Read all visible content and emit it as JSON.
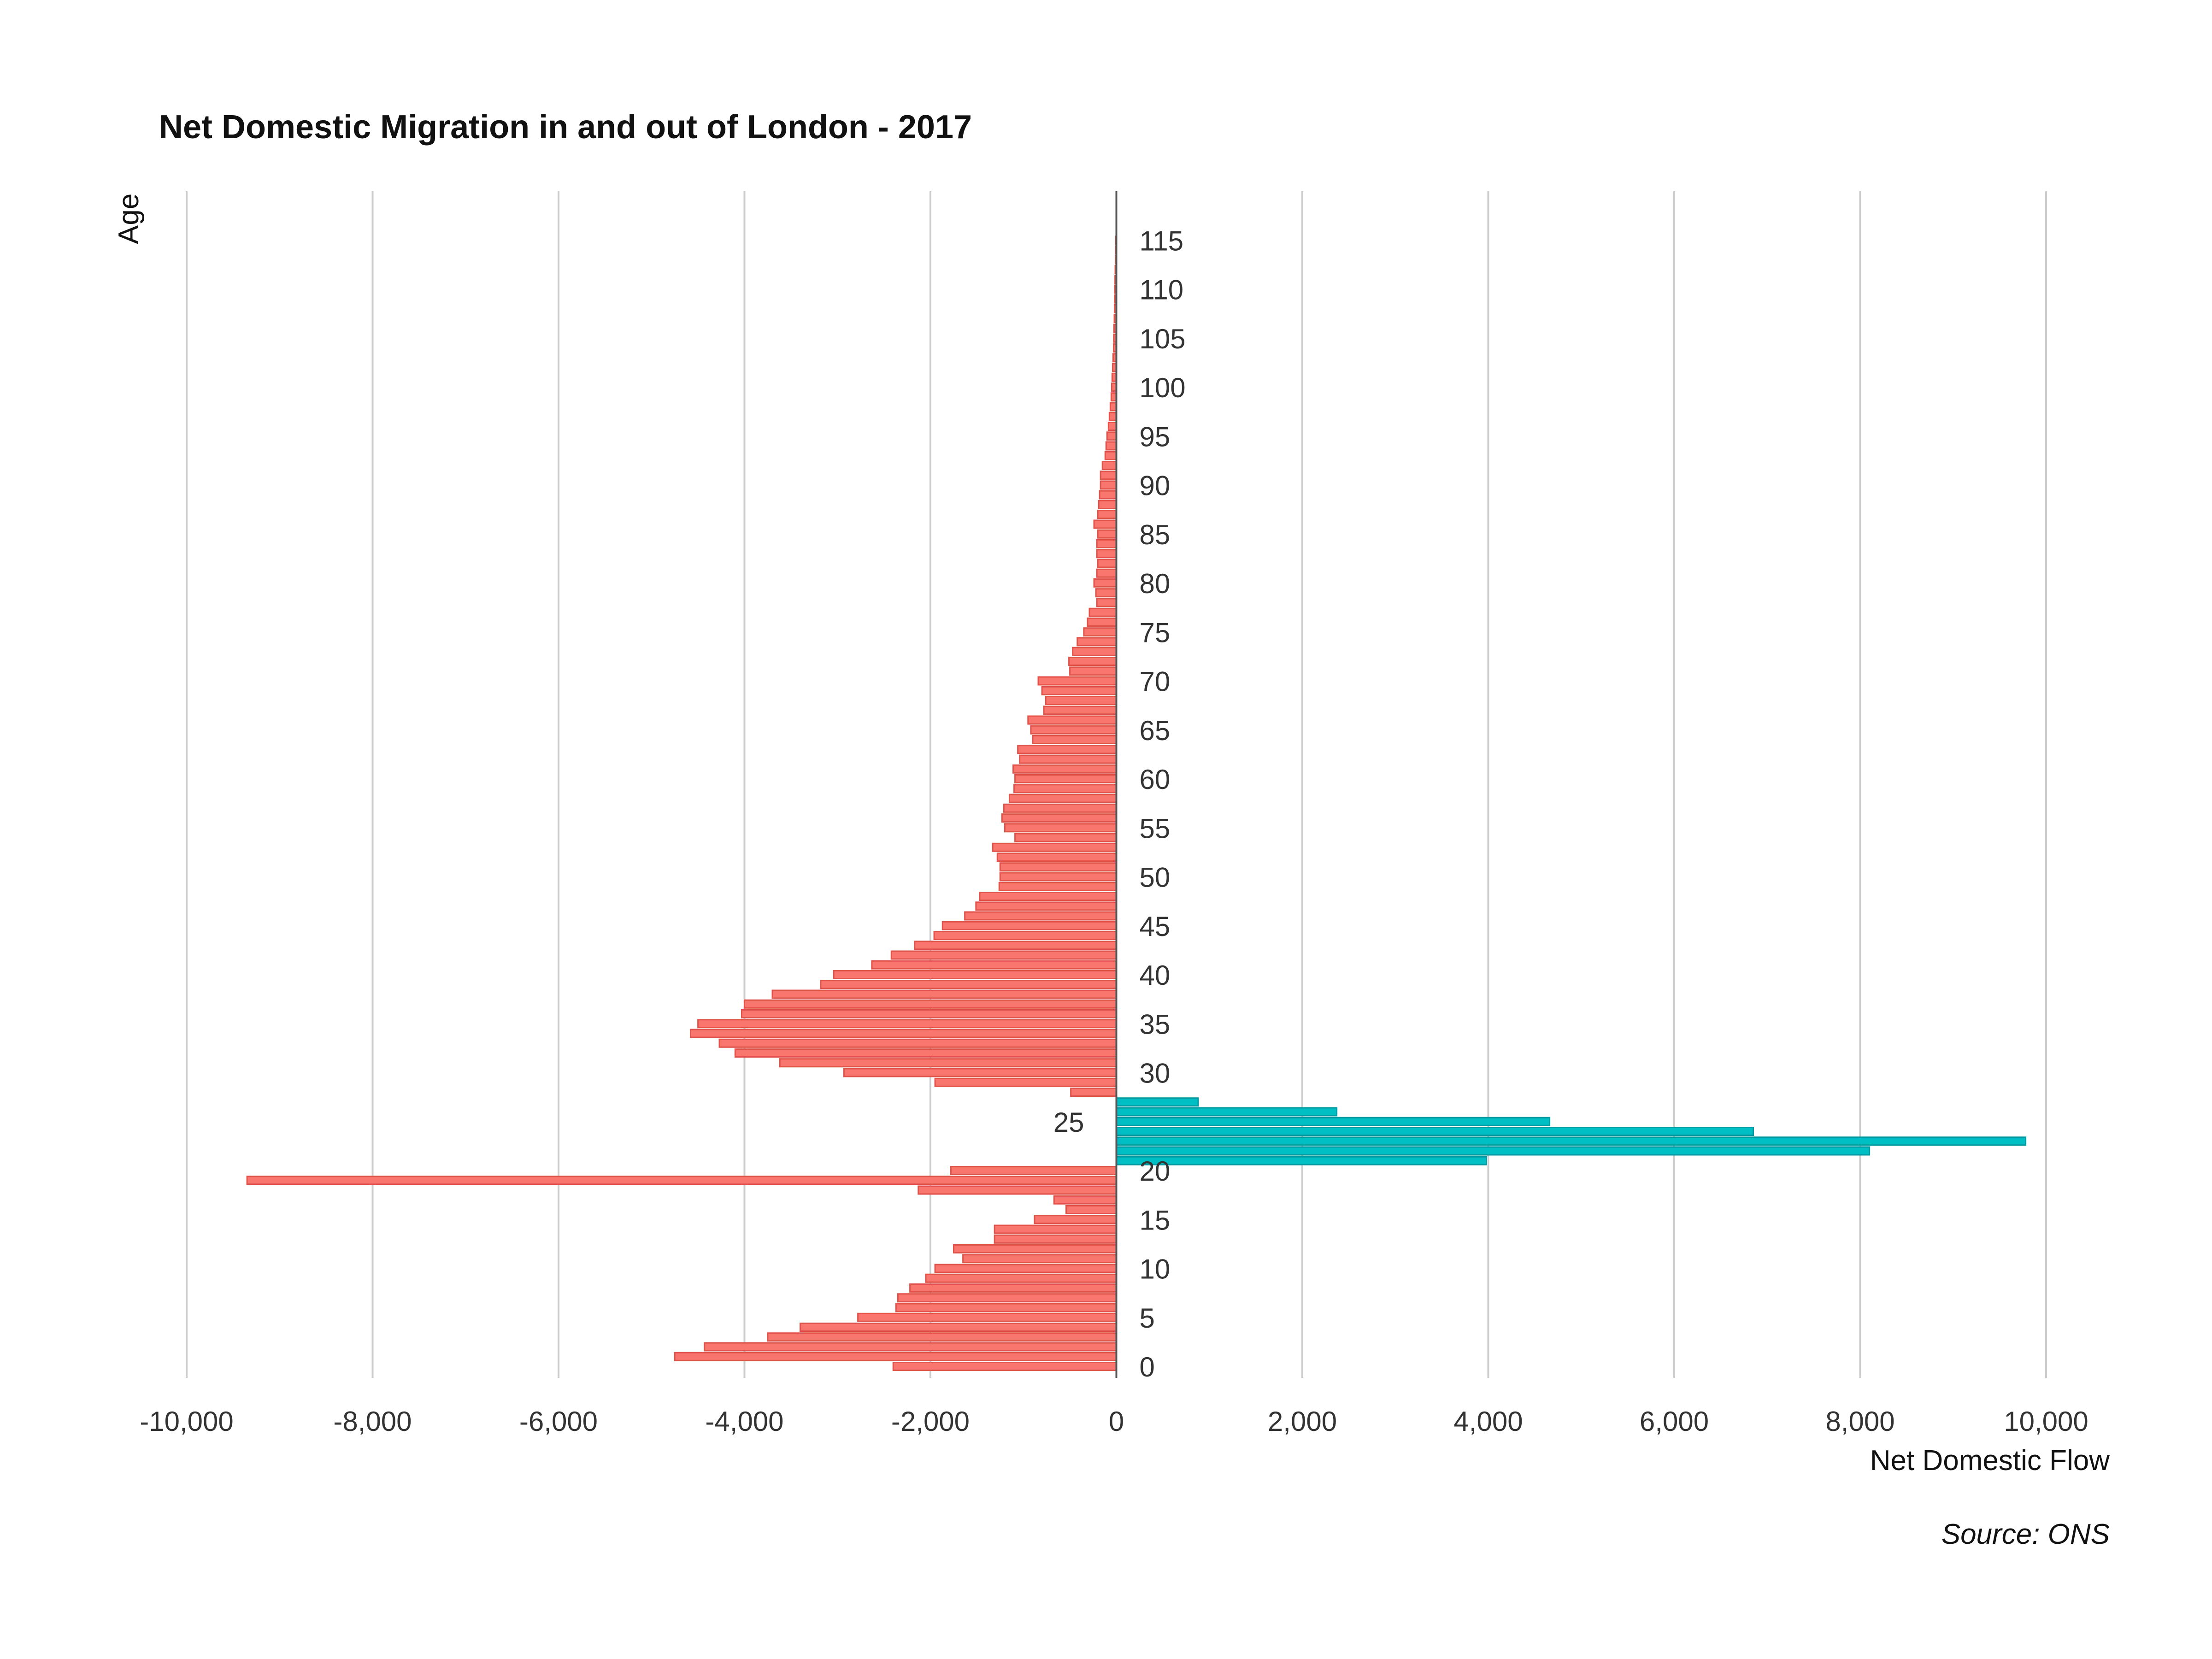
{
  "chart_data": {
    "type": "bar",
    "orientation": "horizontal",
    "title": "Net Domestic Migration in and out of London - 2017",
    "xlabel": "Net Domestic Flow",
    "ylabel": "Age",
    "source": "Source: ONS",
    "xlim": [
      -10000,
      10000
    ],
    "xticks": [
      "-10,000",
      "-8,000",
      "-6,000",
      "-4,000",
      "-2,000",
      "0",
      "2,000",
      "4,000",
      "6,000",
      "8,000",
      "10,000"
    ],
    "xtick_values": [
      -10000,
      -8000,
      -6000,
      -4000,
      -2000,
      0,
      2000,
      4000,
      6000,
      8000,
      10000
    ],
    "yticks": [
      "0",
      "5",
      "10",
      "15",
      "20",
      "25",
      "30",
      "35",
      "40",
      "45",
      "50",
      "55",
      "60",
      "65",
      "70",
      "75",
      "80",
      "85",
      "90",
      "95",
      "100",
      "105",
      "110",
      "115"
    ],
    "ytick_values": [
      0,
      5,
      10,
      15,
      20,
      25,
      30,
      35,
      40,
      45,
      50,
      55,
      60,
      65,
      70,
      75,
      80,
      85,
      90,
      95,
      100,
      105,
      110,
      115
    ],
    "grid": "vertical",
    "colors": {
      "negative": "#F8766D",
      "negative_edge": "#E0534A",
      "positive": "#00BFC4",
      "positive_edge": "#009AA0",
      "grid": "#CCCCCC",
      "axis": "#555555"
    },
    "ages": [
      0,
      1,
      2,
      3,
      4,
      5,
      6,
      7,
      8,
      9,
      10,
      11,
      12,
      13,
      14,
      15,
      16,
      17,
      18,
      19,
      20,
      21,
      22,
      23,
      24,
      25,
      26,
      27,
      28,
      29,
      30,
      31,
      32,
      33,
      34,
      35,
      36,
      37,
      38,
      39,
      40,
      41,
      42,
      43,
      44,
      45,
      46,
      47,
      48,
      49,
      50,
      51,
      52,
      53,
      54,
      55,
      56,
      57,
      58,
      59,
      60,
      61,
      62,
      63,
      64,
      65,
      66,
      67,
      68,
      69,
      70,
      71,
      72,
      73,
      74,
      75,
      76,
      77,
      78,
      79,
      80,
      81,
      82,
      83,
      84,
      85,
      86,
      87,
      88,
      89,
      90,
      91,
      92,
      93,
      94,
      95,
      96,
      97,
      98,
      99,
      100,
      101,
      102,
      103,
      104,
      105,
      106,
      107,
      108,
      109,
      110,
      111,
      112,
      113,
      114,
      115
    ],
    "values": [
      -2400,
      -4750,
      -4430,
      -3750,
      -3400,
      -2780,
      -2370,
      -2350,
      -2220,
      -2050,
      -1950,
      -1650,
      -1750,
      -1310,
      -1310,
      -880,
      -540,
      -670,
      -2130,
      -9350,
      -1780,
      3980,
      8100,
      9780,
      6850,
      4660,
      2370,
      880,
      -490,
      -1950,
      -2930,
      -3620,
      -4100,
      -4270,
      -4580,
      -4500,
      -4030,
      -4000,
      -3700,
      -3180,
      -3040,
      -2630,
      -2420,
      -2170,
      -1960,
      -1870,
      -1630,
      -1510,
      -1470,
      -1260,
      -1250,
      -1250,
      -1280,
      -1330,
      -1090,
      -1200,
      -1230,
      -1210,
      -1150,
      -1100,
      -1090,
      -1110,
      -1040,
      -1060,
      -900,
      -920,
      -950,
      -780,
      -760,
      -800,
      -840,
      -500,
      -510,
      -470,
      -420,
      -350,
      -310,
      -290,
      -210,
      -220,
      -240,
      -210,
      -200,
      -210,
      -210,
      -200,
      -240,
      -200,
      -190,
      -180,
      -170,
      -170,
      -150,
      -120,
      -110,
      -100,
      -85,
      -75,
      -65,
      -55,
      -50,
      -45,
      -40,
      -35,
      -30,
      -28,
      -25,
      -22,
      -20,
      -18,
      -16,
      -14,
      -12,
      -10,
      -8,
      -6
    ]
  }
}
